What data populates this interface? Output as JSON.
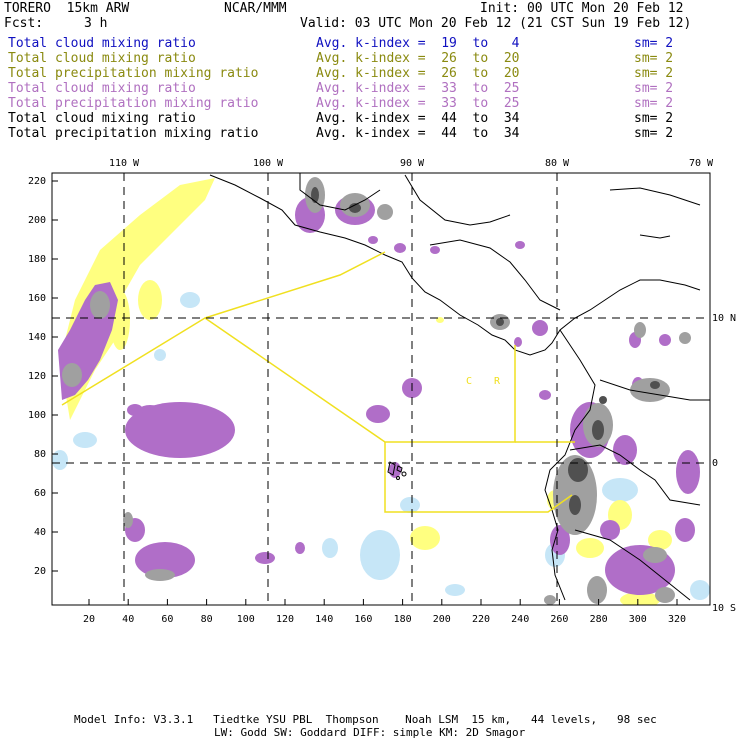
{
  "header": {
    "model": "TORERO  15km ARW",
    "center": "NCAR/MMM",
    "init": "Init: 00 UTC Mon 20 Feb 12",
    "fcst_label": "Fcst:",
    "fcst_value": "3 h",
    "valid": "Valid: 03 UTC Mon 20 Feb 12 (21 CST Sun 19 Feb 12)"
  },
  "legend": [
    {
      "label": "Total cloud mixing ratio",
      "kindex": "Avg. k-index =  19  to   4",
      "sm": "sm= 2",
      "color": "#1010c0"
    },
    {
      "label": "Total cloud mixing ratio",
      "kindex": "Avg. k-index =  26  to  20",
      "sm": "sm= 2",
      "color": "#8a8a10"
    },
    {
      "label": "Total precipitation mixing ratio",
      "kindex": "Avg. k-index =  26  to  20",
      "sm": "sm= 2",
      "color": "#8a8a10"
    },
    {
      "label": "Total cloud mixing ratio",
      "kindex": "Avg. k-index =  33  to  25",
      "sm": "sm= 2",
      "color": "#b070c0"
    },
    {
      "label": "Total precipitation mixing ratio",
      "kindex": "Avg. k-index =  33  to  25",
      "sm": "sm= 2",
      "color": "#b070c0"
    },
    {
      "label": "Total cloud mixing ratio",
      "kindex": "Avg. k-index =  44  to  34",
      "sm": "sm= 2",
      "color": "#000000"
    },
    {
      "label": "Total precipitation mixing ratio",
      "kindex": "Avg. k-index =  44  to  34",
      "sm": "sm= 2",
      "color": "#000000"
    }
  ],
  "axes": {
    "top_ticks": [
      "110 W",
      "100 W",
      "90 W",
      "80 W",
      "70 W"
    ],
    "right_ticks": [
      "10 N",
      "0",
      "10 S"
    ],
    "left_ticks": [
      "220",
      "200",
      "180",
      "160",
      "140",
      "120",
      "100",
      "80",
      "60",
      "40",
      "20"
    ],
    "bottom_ticks": [
      "20",
      "40",
      "60",
      "80",
      "100",
      "120",
      "140",
      "160",
      "180",
      "200",
      "220",
      "240",
      "260",
      "280",
      "300",
      "320"
    ]
  },
  "map_labels": [
    "C",
    "R"
  ],
  "footer": {
    "line1": "Model Info: V3.3.1   Tiedtke YSU PBL  Thompson    Noah LSM  15 km,   44 levels,   98 sec",
    "line2": "LW: Godd SW: Goddard DIFF: simple KM: 2D Smagor"
  },
  "colors": {
    "light_blue": "#c6e6f7",
    "yellow": "#ffff80",
    "purple": "#b06ec8",
    "gray": "#a0a0a0",
    "dark_gray": "#505050",
    "boundary_yellow": "#f0e020"
  }
}
